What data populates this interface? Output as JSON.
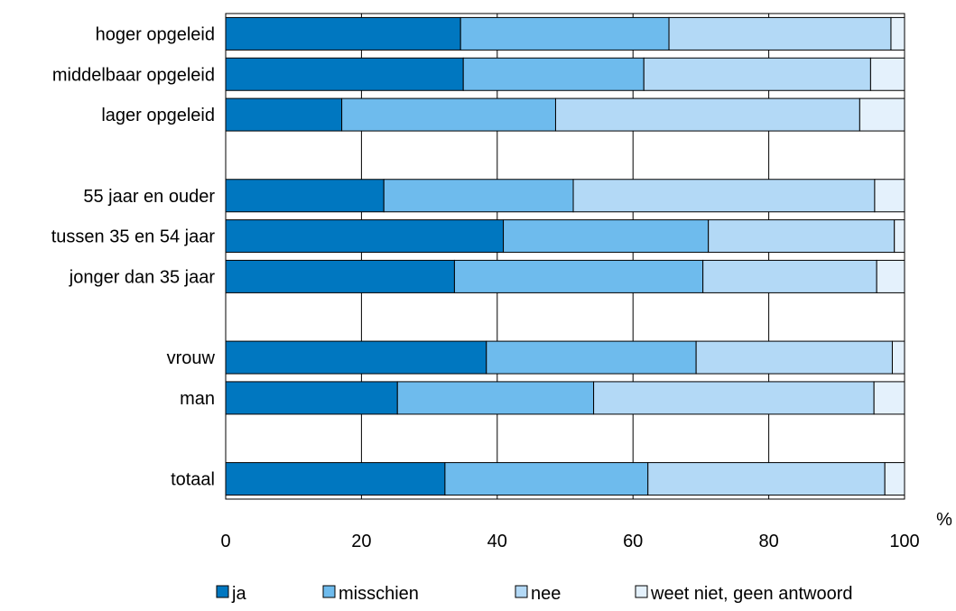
{
  "chart_data": {
    "type": "bar",
    "orientation": "horizontal",
    "stacked": true,
    "categories": [
      "hoger opgeleid",
      "middelbaar opgeleid",
      "lager opgeleid",
      "",
      "55 jaar en ouder",
      "tussen 35 en 54 jaar",
      "jonger dan 35 jaar",
      "",
      "vrouw",
      "man",
      "",
      "totaal"
    ],
    "series": [
      {
        "name": "ja",
        "color": "#0077c0",
        "values": [
          34.6,
          35.0,
          17.1,
          null,
          23.3,
          40.9,
          33.7,
          null,
          38.4,
          25.3,
          null,
          32.3
        ]
      },
      {
        "name": "misschien",
        "color": "#6ebbed",
        "values": [
          30.7,
          26.6,
          31.5,
          null,
          27.9,
          30.2,
          36.6,
          null,
          30.9,
          28.9,
          null,
          29.9
        ]
      },
      {
        "name": "nee",
        "color": "#b3d9f6",
        "values": [
          32.7,
          33.4,
          44.8,
          null,
          44.4,
          27.4,
          25.6,
          null,
          28.9,
          41.3,
          null,
          34.9
        ]
      },
      {
        "name": "weet niet, geen antwoord",
        "color": "#e4f1fc",
        "values": [
          2.0,
          5.0,
          6.6,
          null,
          4.4,
          1.5,
          4.1,
          null,
          1.8,
          4.5,
          null,
          2.9
        ]
      }
    ],
    "xlim": [
      0,
      100
    ],
    "xticks": [
      "0",
      "20",
      "40",
      "60",
      "80",
      "100"
    ],
    "unit": "%",
    "grid": true,
    "legend_position": "bottom"
  }
}
